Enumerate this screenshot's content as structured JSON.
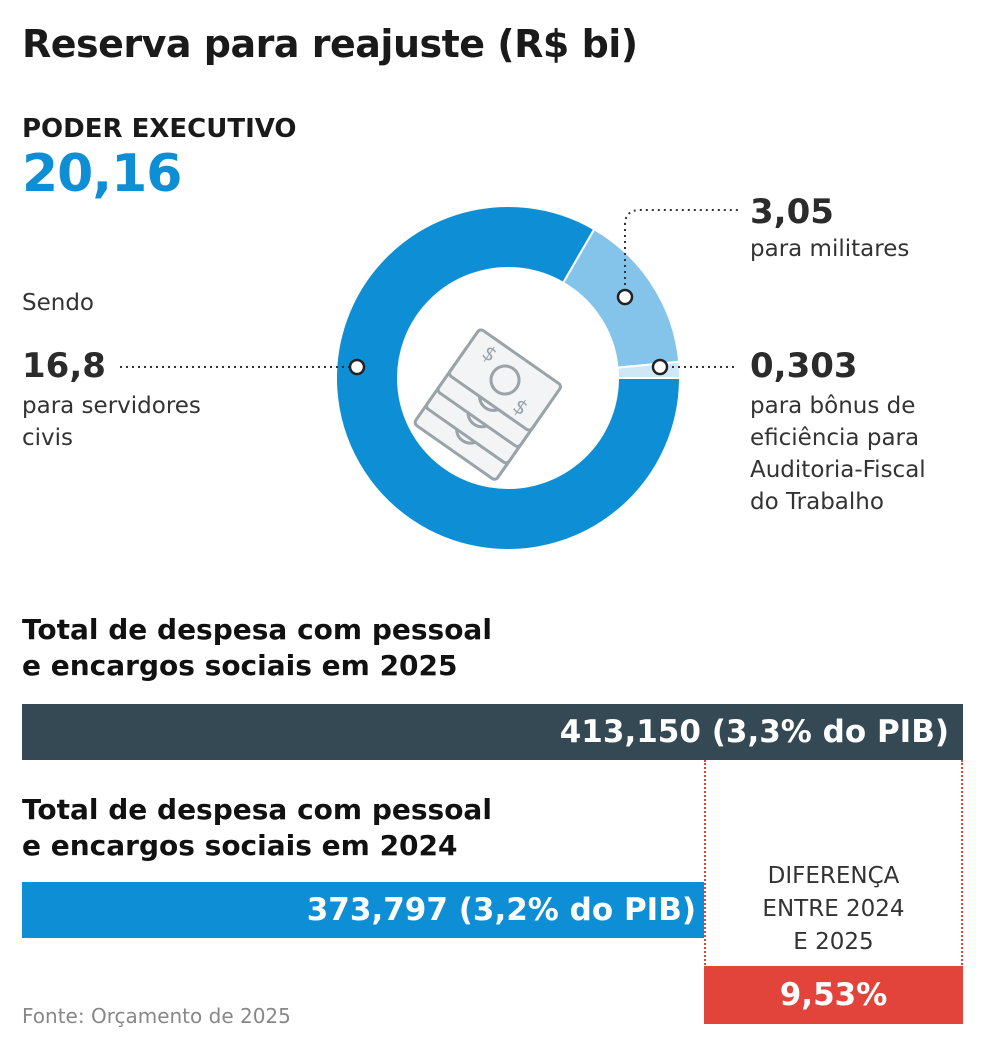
{
  "title": "Reserva para reajuste (R$ bi)",
  "executive": {
    "label": "PODER EXECUTIVO",
    "value": "20,16"
  },
  "sendo": "Sendo",
  "chart_data": [
    {
      "type": "pie",
      "title": "PODER EXECUTIVO",
      "total": 20.16,
      "categories": [
        "para servidores civis",
        "para militares",
        "para bônus de eficiência para Auditoria-Fiscal do Trabalho"
      ],
      "values": [
        16.8,
        3.05,
        0.303
      ],
      "colors": [
        "#0e8fd5",
        "#85c4ea",
        "#cfe8f6"
      ],
      "labels": {
        "civis": {
          "value": "16,8",
          "text_line1": "para servidores",
          "text_line2": "civis"
        },
        "militares": {
          "value": "3,05",
          "text_line1": "para militares"
        },
        "bonus": {
          "value": "0,303",
          "text_line1": "para bônus de",
          "text_line2": "eficiência para",
          "text_line3": "Auditoria-Fiscal",
          "text_line4": "do Trabalho"
        }
      }
    },
    {
      "type": "bar",
      "categories": [
        "2025",
        "2024"
      ],
      "values": [
        413.15,
        373.797
      ],
      "value_labels": [
        "413,150 (3,3% do PIB)",
        "373,797 (3,2% do PIB)"
      ],
      "section_titles": {
        "y2025_line1": "Total de despesa com pessoal",
        "y2025_line2": "e encargos sociais em 2025",
        "y2024_line1": "Total de despesa com pessoal",
        "y2024_line2": "e encargos sociais em 2024"
      },
      "difference": {
        "label_line1": "DIFERENÇA",
        "label_line2": "ENTRE 2024",
        "label_line3": "E 2025",
        "value": "9,53%"
      },
      "colors": {
        "y2025": "#344953",
        "y2024": "#0e8fd5",
        "difference": "#e2443b"
      }
    }
  ],
  "source": "Fonte: Orçamento de 2025"
}
